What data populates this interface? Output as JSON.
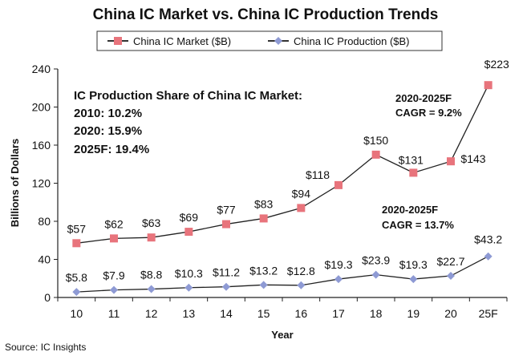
{
  "chart_data": {
    "type": "line",
    "title": "China IC Market vs. China IC Production Trends",
    "xlabel": "Year",
    "ylabel": "Billions of Dollars",
    "categories": [
      "10",
      "11",
      "12",
      "13",
      "14",
      "15",
      "16",
      "17",
      "18",
      "19",
      "20",
      "25F"
    ],
    "ylim": [
      0,
      240
    ],
    "yticks": [
      "0",
      "40",
      "80",
      "120",
      "160",
      "200",
      "240"
    ],
    "grid": false,
    "legend_position": "top",
    "series": [
      {
        "name": "China IC Market ($B)",
        "color": "#e8747c",
        "marker": "square",
        "values": [
          57,
          62,
          63,
          69,
          77,
          83,
          94,
          118,
          150,
          131,
          143,
          223
        ],
        "labels": [
          "$57",
          "$62",
          "$63",
          "$69",
          "$77",
          "$83",
          "$94",
          "$118",
          "$150",
          "$131",
          "$143",
          "$223"
        ]
      },
      {
        "name": "China IC Production ($B)",
        "color": "#8e9ad4",
        "marker": "diamond",
        "values": [
          5.8,
          7.9,
          8.8,
          10.3,
          11.2,
          13.2,
          12.8,
          19.3,
          23.9,
          19.3,
          22.7,
          43.2
        ],
        "labels": [
          "$5.8",
          "$7.9",
          "$8.8",
          "$10.3",
          "$11.2",
          "$13.2",
          "$12.8",
          "$19.3",
          "$23.9",
          "$19.3",
          "$22.7",
          "$43.2"
        ]
      }
    ],
    "annotations": {
      "share_title": "IC Production Share of China IC Market:",
      "share_lines": [
        "2010: 10.2%",
        "2020: 15.9%",
        "2025F: 19.4%"
      ],
      "market_cagr": [
        "2020-2025F",
        "CAGR = 9.2%"
      ],
      "production_cagr": [
        "2020-2025F",
        "CAGR = 13.7%"
      ]
    },
    "source": "Source: IC Insights"
  }
}
